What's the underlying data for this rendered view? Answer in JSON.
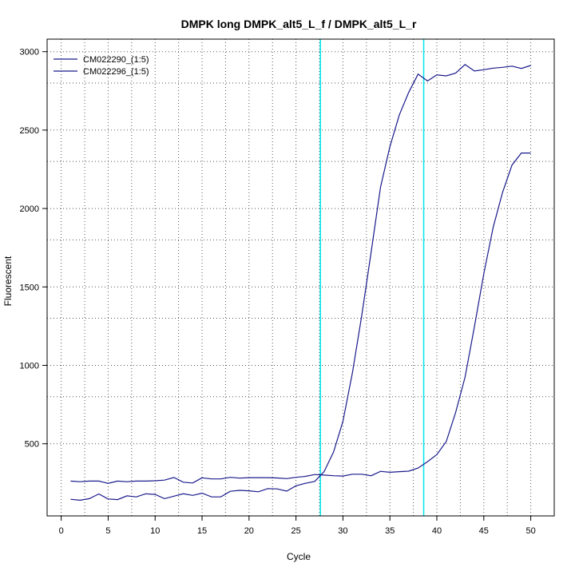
{
  "chart_data": {
    "type": "line",
    "title": "DMPK long DMPK_alt5_L_f / DMPK_alt5_L_r",
    "xlabel": "Cycle",
    "ylabel": "Fluorescent",
    "xlim": [
      -1.5,
      52.5
    ],
    "ylim": [
      40,
      3080
    ],
    "x_ticks": [
      0,
      5,
      10,
      15,
      20,
      25,
      30,
      35,
      40,
      45,
      50
    ],
    "y_ticks": [
      500,
      1000,
      1500,
      2000,
      2500,
      3000
    ],
    "grid_x_dotted": [
      2.5,
      7.5,
      12.5,
      17.5,
      22.5,
      27.5,
      32.5,
      37.5,
      42.5,
      47.5
    ],
    "grid_y_dotted": [
      500,
      800,
      1000,
      1300,
      1500,
      1800,
      2000,
      2300,
      2500,
      2800,
      3000
    ],
    "threshold_cycles": [
      27.6,
      38.6
    ],
    "threshold_color": "#00e5ee",
    "grid": true,
    "legend_position": "top-left",
    "series": [
      {
        "name": "CM022290_(1:5)",
        "color": "#1a1a8c",
        "x": [
          1,
          2,
          3,
          4,
          5,
          6,
          7,
          8,
          9,
          10,
          11,
          12,
          13,
          14,
          15,
          16,
          17,
          18,
          19,
          20,
          21,
          22,
          23,
          24,
          25,
          26,
          27,
          28,
          29,
          30,
          31,
          32,
          33,
          34,
          35,
          36,
          37,
          38,
          39,
          40,
          41,
          42,
          43,
          44,
          45,
          46,
          47,
          48,
          49,
          50
        ],
        "y": [
          262,
          258,
          262,
          262,
          248,
          262,
          258,
          262,
          262,
          264,
          268,
          285,
          255,
          250,
          283,
          276,
          276,
          286,
          281,
          284,
          284,
          284,
          282,
          278,
          286,
          292,
          304,
          300,
          296,
          294,
          306,
          306,
          296,
          324,
          318,
          322,
          325,
          345,
          386,
          431,
          514,
          699,
          924,
          1245,
          1584,
          1882,
          2103,
          2277,
          2354,
          2354
        ]
      },
      {
        "name": "CM022296_(1:5)",
        "color": "#1a1a8c",
        "x": [
          1,
          2,
          3,
          4,
          5,
          6,
          7,
          8,
          9,
          10,
          11,
          12,
          13,
          14,
          15,
          16,
          17,
          18,
          19,
          20,
          21,
          22,
          23,
          24,
          25,
          26,
          27,
          28,
          29,
          30,
          31,
          32,
          33,
          34,
          35,
          36,
          37,
          38,
          39,
          40,
          41,
          42,
          43,
          44,
          45,
          46,
          47,
          48,
          49,
          50
        ],
        "y": [
          146,
          140,
          150,
          180,
          148,
          144,
          168,
          161,
          181,
          177,
          150,
          166,
          181,
          171,
          185,
          161,
          161,
          197,
          203,
          200,
          194,
          214,
          212,
          198,
          232,
          248,
          260,
          323,
          448,
          643,
          950,
          1315,
          1721,
          2137,
          2394,
          2597,
          2740,
          2857,
          2813,
          2852,
          2846,
          2863,
          2918,
          2877,
          2885,
          2895,
          2900,
          2908,
          2893,
          2912
        ]
      }
    ]
  }
}
